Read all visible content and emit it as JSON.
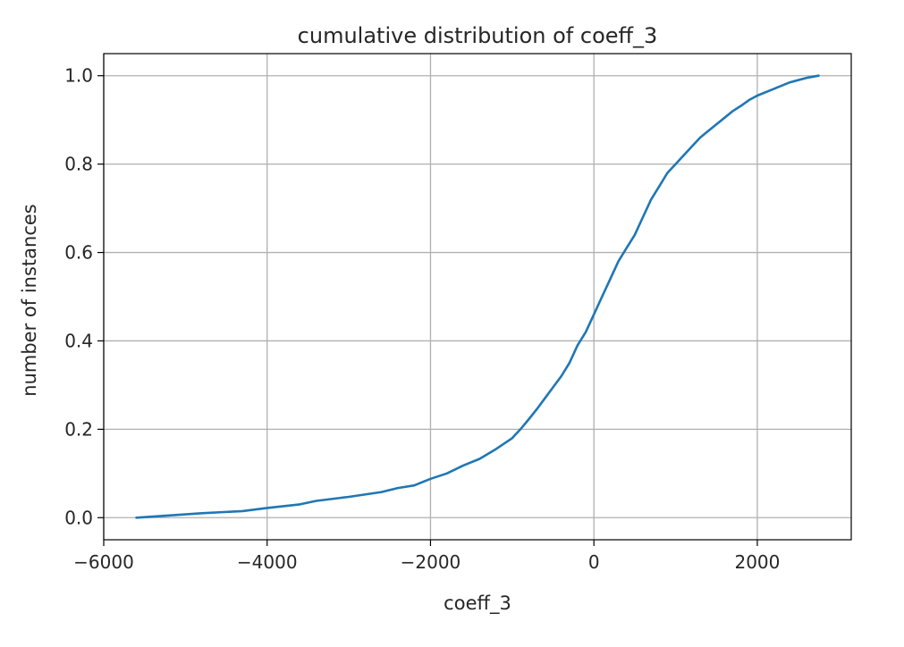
{
  "chart_data": {
    "type": "line",
    "title": "cumulative distribution of coeff_3",
    "xlabel": "coeff_3",
    "ylabel": "number of instances",
    "xlim": [
      -6000,
      3150
    ],
    "ylim": [
      -0.05,
      1.05
    ],
    "xticks": [
      -6000,
      -4000,
      -2000,
      0,
      2000
    ],
    "xtick_labels": [
      "−6000",
      "−4000",
      "−2000",
      "0",
      "2000"
    ],
    "yticks": [
      0.0,
      0.2,
      0.4,
      0.6,
      0.8,
      1.0
    ],
    "ytick_labels": [
      "0.0",
      "0.2",
      "0.4",
      "0.6",
      "0.8",
      "1.0"
    ],
    "grid": true,
    "series": [
      {
        "color": "#1f77b4",
        "x": [
          -5600,
          -5200,
          -4800,
          -4300,
          -4000,
          -3600,
          -3400,
          -3000,
          -2600,
          -2400,
          -2200,
          -2000,
          -1800,
          -1600,
          -1400,
          -1200,
          -1000,
          -900,
          -800,
          -700,
          -600,
          -500,
          -400,
          -300,
          -200,
          -100,
          0,
          100,
          200,
          300,
          400,
          500,
          600,
          700,
          800,
          900,
          1000,
          1100,
          1200,
          1300,
          1400,
          1500,
          1600,
          1700,
          1800,
          1900,
          2000,
          2200,
          2400,
          2600,
          2750
        ],
        "y": [
          0.0,
          0.005,
          0.01,
          0.015,
          0.022,
          0.03,
          0.038,
          0.047,
          0.058,
          0.067,
          0.073,
          0.088,
          0.1,
          0.118,
          0.133,
          0.155,
          0.18,
          0.2,
          0.222,
          0.245,
          0.27,
          0.295,
          0.32,
          0.35,
          0.39,
          0.42,
          0.46,
          0.5,
          0.54,
          0.58,
          0.61,
          0.64,
          0.68,
          0.72,
          0.75,
          0.78,
          0.8,
          0.82,
          0.84,
          0.86,
          0.875,
          0.89,
          0.905,
          0.92,
          0.932,
          0.945,
          0.955,
          0.97,
          0.985,
          0.995,
          1.0
        ]
      }
    ]
  }
}
